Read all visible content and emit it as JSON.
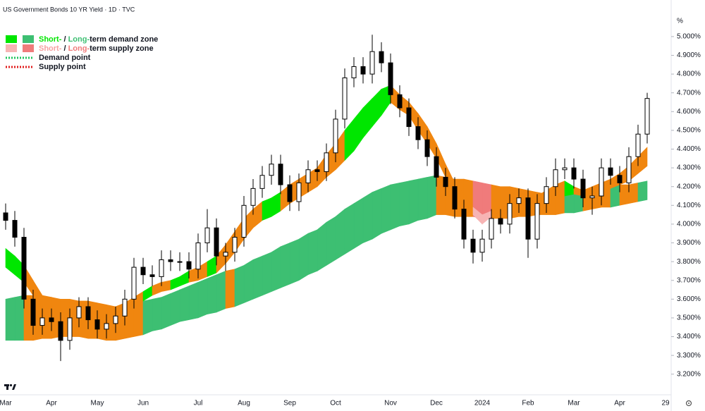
{
  "chart_data": {
    "type": "candlestick",
    "title": "US Government Bonds 10 YR Yield · 1D · TVC",
    "unit": "%",
    "categories": [
      "Mar",
      null,
      null,
      null,
      null,
      "Apr",
      null,
      null,
      null,
      null,
      "May",
      null,
      null,
      null,
      null,
      "Jun",
      null,
      null,
      null,
      null,
      null,
      "Jul",
      null,
      null,
      null,
      null,
      "Aug",
      null,
      null,
      null,
      null,
      "Sep",
      null,
      null,
      null,
      null,
      "Oct",
      null,
      null,
      null,
      null,
      null,
      "Nov",
      null,
      null,
      null,
      null,
      "Dec",
      null,
      null,
      null,
      null,
      "2024",
      null,
      null,
      null,
      null,
      "Feb",
      null,
      null,
      null,
      null,
      "Mar",
      null,
      null,
      null,
      null,
      "Apr",
      null,
      null,
      null,
      null,
      "29"
    ],
    "open": [
      4.06,
      4.02,
      3.93,
      3.6,
      3.46,
      3.5,
      3.48,
      3.38,
      3.5,
      3.56,
      3.49,
      3.44,
      3.47,
      3.51,
      3.6,
      3.77,
      3.73,
      3.72,
      3.81,
      3.8,
      3.8,
      3.76,
      3.9,
      3.98,
      3.83,
      3.85,
      3.93,
      4.1,
      4.19,
      4.26,
      4.32,
      4.21,
      4.12,
      4.22,
      4.29,
      4.28,
      4.38,
      4.56,
      4.78,
      4.84,
      4.8,
      4.92,
      4.86,
      4.69,
      4.62,
      4.52,
      4.45,
      4.36,
      4.25,
      4.2,
      4.08,
      3.92,
      3.85,
      3.92,
      4.03,
      4.0,
      4.11,
      4.14,
      3.92,
      4.11,
      4.2,
      4.29,
      4.3,
      4.24,
      4.14,
      4.15,
      4.3,
      4.26,
      4.22,
      4.36,
      4.48,
      null,
      null
    ],
    "high": [
      4.11,
      4.07,
      3.98,
      3.65,
      3.55,
      3.55,
      3.53,
      3.55,
      3.61,
      3.61,
      3.54,
      3.52,
      3.56,
      3.65,
      3.82,
      3.82,
      3.78,
      3.86,
      3.86,
      3.85,
      3.85,
      3.95,
      4.08,
      4.03,
      3.9,
      3.98,
      4.15,
      4.24,
      4.31,
      4.37,
      4.37,
      4.26,
      4.27,
      4.34,
      4.34,
      4.43,
      4.61,
      4.83,
      4.89,
      4.89,
      5.01,
      4.97,
      4.91,
      4.74,
      4.67,
      4.57,
      4.5,
      4.41,
      4.3,
      4.25,
      4.13,
      3.97,
      3.97,
      4.08,
      4.08,
      4.16,
      4.19,
      4.19,
      4.16,
      4.25,
      4.35,
      4.35,
      4.35,
      4.29,
      4.2,
      4.35,
      4.35,
      4.31,
      4.41,
      4.53,
      4.7,
      null,
      null
    ],
    "low": [
      3.97,
      3.88,
      3.55,
      3.41,
      3.41,
      3.43,
      3.27,
      3.33,
      3.45,
      3.44,
      3.39,
      3.39,
      3.42,
      3.46,
      3.55,
      3.68,
      3.67,
      3.67,
      3.75,
      3.75,
      3.71,
      3.71,
      3.85,
      3.78,
      3.75,
      3.8,
      3.88,
      4.05,
      4.14,
      4.21,
      4.16,
      4.07,
      4.07,
      4.17,
      4.23,
      4.23,
      4.33,
      4.51,
      4.73,
      4.75,
      4.75,
      4.81,
      4.64,
      4.57,
      4.47,
      4.4,
      4.31,
      4.2,
      4.15,
      4.03,
      3.87,
      3.79,
      3.8,
      3.87,
      3.95,
      3.95,
      4.06,
      3.82,
      3.87,
      4.06,
      4.15,
      4.24,
      4.19,
      4.09,
      4.05,
      4.1,
      4.21,
      4.17,
      4.17,
      4.31,
      4.43,
      null,
      null
    ],
    "close": [
      4.02,
      3.93,
      3.6,
      3.46,
      3.5,
      3.48,
      3.38,
      3.5,
      3.56,
      3.49,
      3.44,
      3.47,
      3.51,
      3.6,
      3.77,
      3.73,
      3.72,
      3.81,
      3.8,
      3.8,
      3.76,
      3.9,
      3.98,
      3.83,
      3.85,
      3.93,
      4.1,
      4.19,
      4.26,
      4.32,
      4.21,
      4.12,
      4.22,
      4.29,
      4.28,
      4.38,
      4.56,
      4.78,
      4.84,
      4.8,
      4.92,
      4.86,
      4.69,
      4.62,
      4.52,
      4.45,
      4.36,
      4.25,
      4.2,
      4.08,
      3.92,
      3.85,
      3.92,
      4.03,
      4.0,
      4.11,
      4.14,
      3.92,
      4.11,
      4.2,
      4.29,
      4.3,
      4.24,
      4.14,
      4.15,
      4.3,
      4.26,
      4.22,
      4.36,
      4.48,
      4.67,
      null,
      null
    ],
    "long_zone": {
      "upper": [
        3.6,
        3.61,
        3.62,
        3.62,
        3.61,
        3.61,
        3.6,
        3.6,
        3.59,
        3.59,
        3.58,
        3.57,
        3.56,
        3.57,
        3.58,
        3.59,
        3.6,
        3.61,
        3.63,
        3.65,
        3.67,
        3.69,
        3.71,
        3.73,
        3.75,
        3.76,
        3.78,
        3.81,
        3.83,
        3.85,
        3.88,
        3.9,
        3.92,
        3.95,
        3.97,
        4.01,
        4.04,
        4.08,
        4.11,
        4.14,
        4.17,
        4.19,
        4.21,
        4.22,
        4.23,
        4.24,
        4.25,
        4.26,
        4.25,
        4.24,
        4.24,
        4.23,
        4.22,
        4.21,
        4.2,
        4.2,
        4.19,
        4.18,
        4.17,
        4.16,
        4.16,
        4.17,
        4.18,
        4.18,
        4.19,
        4.2,
        4.2,
        4.21,
        4.21,
        4.22,
        4.23,
        null,
        null
      ],
      "lower": [
        3.38,
        3.38,
        3.38,
        3.38,
        3.39,
        3.39,
        3.4,
        3.4,
        3.4,
        3.39,
        3.39,
        3.38,
        3.38,
        3.39,
        3.4,
        3.41,
        3.43,
        3.44,
        3.46,
        3.48,
        3.49,
        3.5,
        3.52,
        3.53,
        3.55,
        3.56,
        3.58,
        3.6,
        3.62,
        3.64,
        3.66,
        3.68,
        3.7,
        3.73,
        3.75,
        3.78,
        3.81,
        3.84,
        3.87,
        3.9,
        3.92,
        3.95,
        3.97,
        3.99,
        4.0,
        4.02,
        4.03,
        4.05,
        4.05,
        4.04,
        4.04,
        4.04,
        4.03,
        4.03,
        4.03,
        4.03,
        4.04,
        4.04,
        4.05,
        4.05,
        4.05,
        4.06,
        4.06,
        4.07,
        4.08,
        4.09,
        4.09,
        4.1,
        4.11,
        4.12,
        4.13,
        null,
        null
      ]
    },
    "short_zone": {
      "upper": [
        3.87,
        3.83,
        3.78,
        3.7,
        3.62,
        3.61,
        3.59,
        3.58,
        3.57,
        3.57,
        3.56,
        3.55,
        3.56,
        3.58,
        3.61,
        3.64,
        3.67,
        3.69,
        3.7,
        3.72,
        3.75,
        3.77,
        3.8,
        3.83,
        3.89,
        3.96,
        4.03,
        4.08,
        4.12,
        4.14,
        4.17,
        4.21,
        4.24,
        4.27,
        4.3,
        4.37,
        4.43,
        4.5,
        4.56,
        4.62,
        4.67,
        4.72,
        4.74,
        4.69,
        4.65,
        4.59,
        4.52,
        4.43,
        4.32,
        4.22,
        4.16,
        4.09,
        4.05,
        4.07,
        4.09,
        4.1,
        4.12,
        4.14,
        4.15,
        4.18,
        4.21,
        4.23,
        4.2,
        4.18,
        4.2,
        4.22,
        4.24,
        4.27,
        4.31,
        4.36,
        4.41,
        null,
        null
      ],
      "lower": [
        3.77,
        3.73,
        3.69,
        3.62,
        3.55,
        3.55,
        3.53,
        3.52,
        3.51,
        3.51,
        3.51,
        3.5,
        3.51,
        3.53,
        3.56,
        3.59,
        3.62,
        3.64,
        3.65,
        3.67,
        3.69,
        3.7,
        3.72,
        3.74,
        3.79,
        3.85,
        3.92,
        3.98,
        4.02,
        4.04,
        4.07,
        4.11,
        4.14,
        4.17,
        4.2,
        4.25,
        4.29,
        4.34,
        4.39,
        4.46,
        4.52,
        4.58,
        4.65,
        4.61,
        4.58,
        4.5,
        4.43,
        4.35,
        4.25,
        4.16,
        4.11,
        4.05,
        4.0,
        4.04,
        4.07,
        4.08,
        4.08,
        4.09,
        4.1,
        4.12,
        4.14,
        4.15,
        4.16,
        4.15,
        4.16,
        4.18,
        4.19,
        4.21,
        4.23,
        4.27,
        4.31,
        null,
        null
      ]
    },
    "colors": {
      "short_demand": "#00e600",
      "long_demand": "#3dbf72",
      "short_supply": "#f7b4b4",
      "long_supply": "#f07b7b",
      "overlap": "#f0860f",
      "up": "#ffffff",
      "down": "#000000",
      "demand_point": "#22c55e",
      "supply_point": "#e11d1d"
    },
    "legend": [
      {
        "short": "Short-",
        "sep": " / ",
        "long": "Long-",
        "rest": "term demand zone"
      },
      {
        "short": "Short-",
        "sep": " / ",
        "long": "Long-",
        "rest": "term supply zone"
      }
    ],
    "points": [
      "Demand point",
      "Supply point"
    ],
    "ylim": [
      3.09,
      5.195
    ],
    "yticks": [
      {
        "value": 3.2,
        "label": "3.200%"
      },
      {
        "value": 3.3,
        "label": "3.300%"
      },
      {
        "value": 3.4,
        "label": "3.400%"
      },
      {
        "value": 3.5,
        "label": "3.500%"
      },
      {
        "value": 3.6,
        "label": "3.600%"
      },
      {
        "value": 3.7,
        "label": "3.700%"
      },
      {
        "value": 3.8,
        "label": "3.800%"
      },
      {
        "value": 3.9,
        "label": "3.900%"
      },
      {
        "value": 4.0,
        "label": "4.000%"
      },
      {
        "value": 4.1,
        "label": "4.100%"
      },
      {
        "value": 4.2,
        "label": "4.200%"
      },
      {
        "value": 4.3,
        "label": "4.300%"
      },
      {
        "value": 4.4,
        "label": "4.400%"
      },
      {
        "value": 4.5,
        "label": "4.500%"
      },
      {
        "value": 4.6,
        "label": "4.600%"
      },
      {
        "value": 4.7,
        "label": "4.700%"
      },
      {
        "value": 4.8,
        "label": "4.800%"
      },
      {
        "value": 4.9,
        "label": "4.900%"
      },
      {
        "value": 5.0,
        "label": "5.000%"
      }
    ],
    "grid": false
  }
}
